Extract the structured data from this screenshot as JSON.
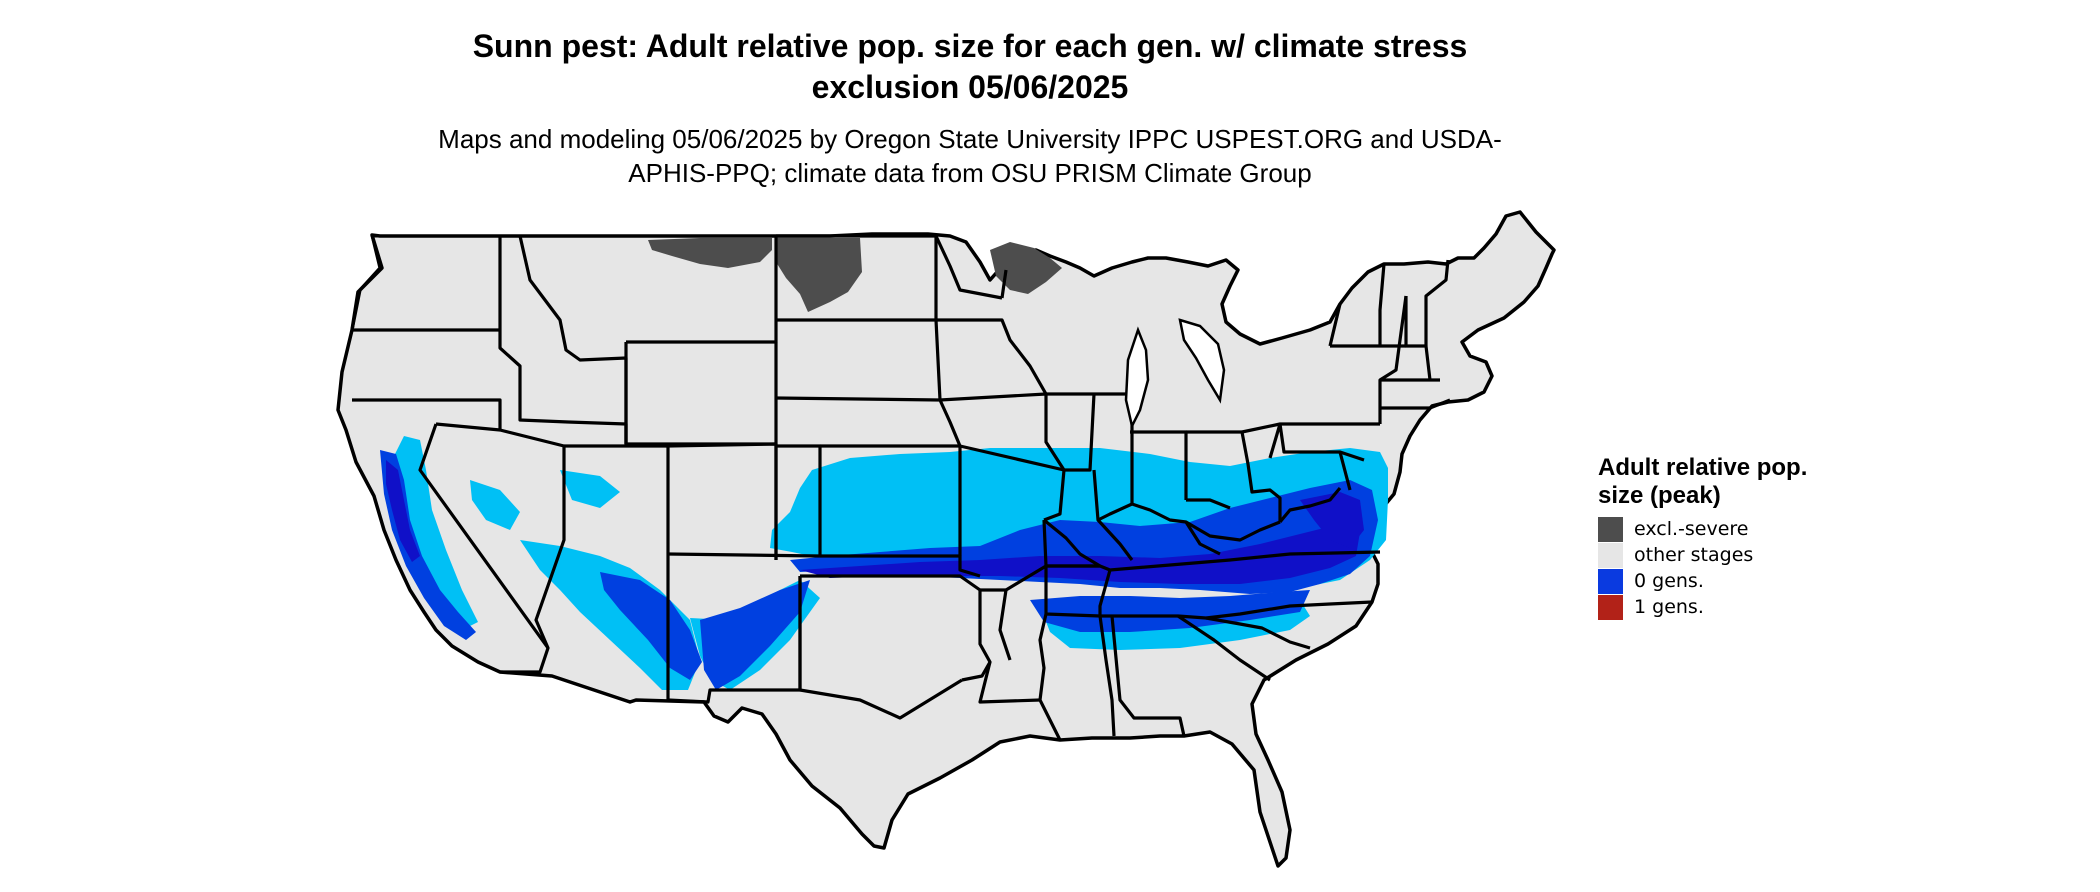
{
  "map": {
    "title": "Sunn pest: Adult relative pop. size for each gen. w/ climate stress exclusion 05/06/2025",
    "subtitle": "Maps and modeling 05/06/2025 by Oregon State University IPPC USPEST.ORG and USDA-APHIS-PPQ; climate data from OSU PRISM Climate Group",
    "region": "Contiguous United States (state boundaries)",
    "colors": {
      "land": "#e6e6e6",
      "boundary": "#000000",
      "light_blue": "#00c0f5",
      "mid_blue": "#0040e0",
      "dark_blue": "#1010c8",
      "excluded": "#4d4d4d"
    }
  },
  "legend": {
    "title": "Adult relative pop. size (peak)",
    "items": [
      {
        "label": "excl.-severe",
        "color": "#4d4d4d"
      },
      {
        "label": "other stages",
        "color": "#e6e6e6"
      },
      {
        "label": "0 gens.",
        "color": "#0a3ae0"
      },
      {
        "label": "1 gens.",
        "color": "#b22218"
      }
    ]
  }
}
